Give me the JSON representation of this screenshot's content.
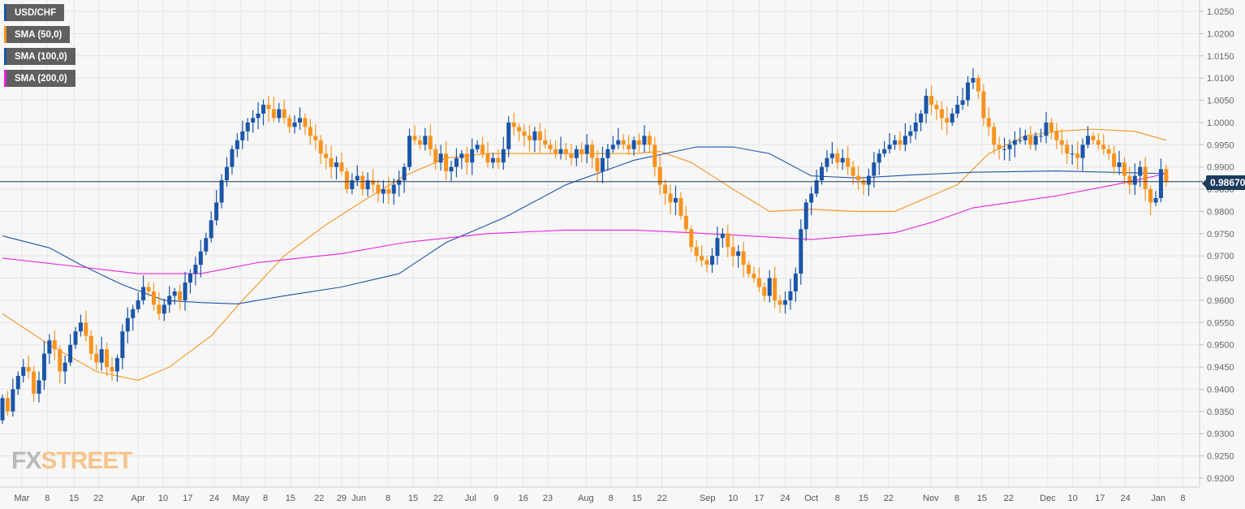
{
  "legend": [
    {
      "label": "USD/CHF",
      "color": "#1a55a8"
    },
    {
      "label": "SMA (50,0)",
      "color": "#f7931e"
    },
    {
      "label": "SMA (100,0)",
      "color": "#1a55a8"
    },
    {
      "label": "SMA (200,0)",
      "color": "#e81fe0"
    }
  ],
  "current_price_label": "0.98670",
  "watermark": {
    "part1": "FX",
    "part2": "STREET"
  },
  "chart_data": {
    "type": "candlestick",
    "symbol": "USD/CHF",
    "ylim": [
      0.918,
      1.027
    ],
    "current_price": 0.9867,
    "y_ticks": [
      "1.0250",
      "1.0200",
      "1.0150",
      "1.0100",
      "1.0050",
      "1.0000",
      "0.9950",
      "0.9900",
      "0.9850",
      "0.9800",
      "0.9750",
      "0.9700",
      "0.9650",
      "0.9600",
      "0.9550",
      "0.9500",
      "0.9450",
      "0.9400",
      "0.9350",
      "0.9300",
      "0.9250",
      "0.9200"
    ],
    "x_ticks": [
      {
        "label": "Mar",
        "idx": 3.7
      },
      {
        "label": "8",
        "idx": 8.6
      },
      {
        "label": "15",
        "idx": 13.7
      },
      {
        "label": "22",
        "idx": 18.4
      },
      {
        "label": "Apr",
        "idx": 26
      },
      {
        "label": "10",
        "idx": 30.8
      },
      {
        "label": "17",
        "idx": 35.5
      },
      {
        "label": "24",
        "idx": 40.6
      },
      {
        "label": "May",
        "idx": 45.7
      },
      {
        "label": "8",
        "idx": 50.4
      },
      {
        "label": "15",
        "idx": 55.2
      },
      {
        "label": "22",
        "idx": 60.7
      },
      {
        "label": "29",
        "idx": 65
      },
      {
        "label": "Jun",
        "idx": 68.3
      },
      {
        "label": "8",
        "idx": 73.9
      },
      {
        "label": "15",
        "idx": 78.7
      },
      {
        "label": "22",
        "idx": 83.5
      },
      {
        "label": "Jul",
        "idx": 89.7
      },
      {
        "label": "9",
        "idx": 94.6
      },
      {
        "label": "16",
        "idx": 99.8
      },
      {
        "label": "23",
        "idx": 104.5
      },
      {
        "label": "Aug",
        "idx": 111.8
      },
      {
        "label": "8",
        "idx": 116.6
      },
      {
        "label": "15",
        "idx": 121.6
      },
      {
        "label": "22",
        "idx": 126.4
      },
      {
        "label": "Sep",
        "idx": 135.1
      },
      {
        "label": "10",
        "idx": 140
      },
      {
        "label": "17",
        "idx": 145
      },
      {
        "label": "24",
        "idx": 150
      },
      {
        "label": "Oct",
        "idx": 155
      },
      {
        "label": "8",
        "idx": 160
      },
      {
        "label": "15",
        "idx": 165
      },
      {
        "label": "22",
        "idx": 169.8
      },
      {
        "label": "Nov",
        "idx": 177.9
      },
      {
        "label": "8",
        "idx": 182.9
      },
      {
        "label": "15",
        "idx": 187.7
      },
      {
        "label": "22",
        "idx": 192.8
      },
      {
        "label": "Dec",
        "idx": 200.3
      },
      {
        "label": "10",
        "idx": 205.1
      },
      {
        "label": "17",
        "idx": 210.3
      },
      {
        "label": "24",
        "idx": 215.2
      },
      {
        "label": "Jan",
        "idx": 221.5
      },
      {
        "label": "8",
        "idx": 226.2
      }
    ],
    "first_open": 0.933,
    "closes": [
      0.938,
      0.935,
      0.94,
      0.943,
      0.945,
      0.944,
      0.939,
      0.942,
      0.948,
      0.951,
      0.949,
      0.944,
      0.946,
      0.95,
      0.953,
      0.955,
      0.952,
      0.948,
      0.946,
      0.949,
      0.945,
      0.944,
      0.947,
      0.953,
      0.956,
      0.958,
      0.96,
      0.963,
      0.962,
      0.959,
      0.957,
      0.959,
      0.961,
      0.962,
      0.96,
      0.964,
      0.966,
      0.968,
      0.971,
      0.974,
      0.978,
      0.982,
      0.987,
      0.99,
      0.994,
      0.996,
      0.998,
      1.0,
      1.001,
      1.002,
      1.004,
      1.003,
      1.001,
      1.003,
      1.001,
      0.999,
      1.0,
      1.001,
      0.999,
      0.997,
      0.996,
      0.993,
      0.992,
      0.99,
      0.991,
      0.989,
      0.985,
      0.987,
      0.988,
      0.985,
      0.987,
      0.986,
      0.984,
      0.985,
      0.984,
      0.986,
      0.987,
      0.99,
      0.997,
      0.996,
      0.995,
      0.997,
      0.994,
      0.991,
      0.993,
      0.989,
      0.99,
      0.992,
      0.993,
      0.991,
      0.994,
      0.995,
      0.993,
      0.991,
      0.992,
      0.991,
      0.994,
      1.0,
      0.999,
      0.998,
      0.997,
      0.996,
      0.998,
      0.996,
      0.995,
      0.994,
      0.993,
      0.994,
      0.993,
      0.992,
      0.994,
      0.993,
      0.995,
      0.992,
      0.989,
      0.992,
      0.994,
      0.995,
      0.996,
      0.995,
      0.994,
      0.996,
      0.995,
      0.997,
      0.995,
      0.99,
      0.986,
      0.984,
      0.982,
      0.983,
      0.979,
      0.976,
      0.972,
      0.97,
      0.969,
      0.968,
      0.97,
      0.974,
      0.975,
      0.972,
      0.97,
      0.971,
      0.968,
      0.966,
      0.965,
      0.963,
      0.961,
      0.965,
      0.96,
      0.959,
      0.96,
      0.962,
      0.966,
      0.976,
      0.982,
      0.984,
      0.987,
      0.99,
      0.992,
      0.993,
      0.991,
      0.992,
      0.99,
      0.988,
      0.987,
      0.986,
      0.988,
      0.991,
      0.993,
      0.994,
      0.995,
      0.996,
      0.995,
      0.997,
      0.998,
      1.0,
      1.002,
      1.006,
      1.004,
      1.003,
      1.001,
      1.0,
      1.002,
      1.004,
      1.005,
      1.009,
      1.01,
      1.007,
      1.001,
      0.999,
      0.995,
      0.994,
      0.994,
      0.995,
      0.996,
      0.996,
      0.997,
      0.995,
      0.997,
      0.997,
      1.0,
      0.998,
      0.996,
      0.995,
      0.993,
      0.993,
      0.992,
      0.995,
      0.997,
      0.996,
      0.995,
      0.994,
      0.993,
      0.99,
      0.991,
      0.988,
      0.986,
      0.988,
      0.99,
      0.985,
      0.982,
      0.983,
      0.9895,
      0.9867
    ],
    "series": [
      {
        "name": "SMA (50,0)",
        "color": "#f7931e",
        "points": [
          [
            0,
            0.957
          ],
          [
            9,
            0.95
          ],
          [
            18,
            0.944
          ],
          [
            26,
            0.942
          ],
          [
            32,
            0.945
          ],
          [
            40,
            0.952
          ],
          [
            46,
            0.96
          ],
          [
            54,
            0.97
          ],
          [
            62,
            0.977
          ],
          [
            70,
            0.983
          ],
          [
            77,
            0.988
          ],
          [
            85,
            0.992
          ],
          [
            93,
            0.993
          ],
          [
            108,
            0.993
          ],
          [
            121,
            0.993
          ],
          [
            126,
            0.9935
          ],
          [
            132,
            0.991
          ],
          [
            140,
            0.985
          ],
          [
            147,
            0.98
          ],
          [
            155,
            0.9805
          ],
          [
            163,
            0.98
          ],
          [
            171,
            0.98
          ],
          [
            177,
            0.983
          ],
          [
            183,
            0.986
          ],
          [
            189,
            0.993
          ],
          [
            196,
            0.997
          ],
          [
            202,
            0.998
          ],
          [
            209,
            0.9985
          ],
          [
            217,
            0.998
          ],
          [
            223,
            0.996
          ]
        ]
      },
      {
        "name": "SMA (100,0)",
        "color": "#1a55a8",
        "points": [
          [
            0,
            0.9745
          ],
          [
            9,
            0.9718
          ],
          [
            15,
            0.968
          ],
          [
            23,
            0.9635
          ],
          [
            31,
            0.96
          ],
          [
            38,
            0.9595
          ],
          [
            45,
            0.9592
          ],
          [
            54,
            0.961
          ],
          [
            65,
            0.963
          ],
          [
            76,
            0.966
          ],
          [
            85,
            0.973
          ],
          [
            96,
            0.9785
          ],
          [
            108,
            0.986
          ],
          [
            121,
            0.9915
          ],
          [
            133,
            0.9945
          ],
          [
            140,
            0.9945
          ],
          [
            147,
            0.993
          ],
          [
            155,
            0.988
          ],
          [
            164,
            0.9875
          ],
          [
            174,
            0.9882
          ],
          [
            186,
            0.9888
          ],
          [
            202,
            0.9891
          ],
          [
            223,
            0.9885
          ]
        ]
      },
      {
        "name": "SMA (200,0)",
        "color": "#e81fe0",
        "points": [
          [
            0,
            0.9695
          ],
          [
            15,
            0.9675
          ],
          [
            26,
            0.966
          ],
          [
            38,
            0.966
          ],
          [
            49,
            0.9685
          ],
          [
            65,
            0.9705
          ],
          [
            77,
            0.973
          ],
          [
            93,
            0.975
          ],
          [
            108,
            0.9758
          ],
          [
            121,
            0.9758
          ],
          [
            132,
            0.9752
          ],
          [
            143,
            0.9745
          ],
          [
            155,
            0.9737
          ],
          [
            171,
            0.9752
          ],
          [
            178,
            0.9775
          ],
          [
            186,
            0.9808
          ],
          [
            202,
            0.9835
          ],
          [
            214,
            0.9862
          ],
          [
            223,
            0.9885
          ]
        ]
      }
    ]
  }
}
